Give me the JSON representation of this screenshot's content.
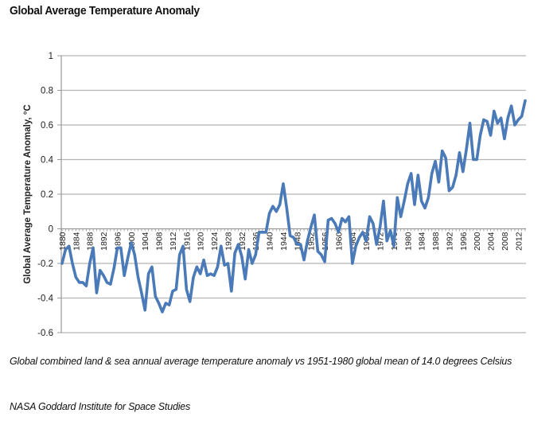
{
  "title": "Global Average Temperature Anomaly",
  "caption": "Global combined land & sea annual average temperature anomaly vs 1951-1980 global mean of 14.0 degrees Celsius",
  "source": "NASA Goddard Institute for Space Studies",
  "chart_data": {
    "type": "line",
    "title": "Global Average Temperature Anomaly",
    "xlabel": "",
    "ylabel": "Global Average Temperature Anomaly, °C",
    "ylim": [
      -0.6,
      1
    ],
    "yticks": [
      1,
      0.8,
      0.6,
      0.4,
      0.2,
      0,
      -0.2,
      -0.4,
      -0.6
    ],
    "ytick_labels": [
      "1",
      "0.8",
      "0.6",
      "0.4",
      "0.2",
      "0",
      "-0.2",
      "-0.4",
      "-0.6"
    ],
    "xlim": [
      1880,
      2014
    ],
    "xticks": [
      "1880",
      "1884",
      "1888",
      "1892",
      "1896",
      "1900",
      "1904",
      "1908",
      "1912",
      "1916",
      "1920",
      "1924",
      "1928",
      "1932",
      "1936",
      "1940",
      "1944",
      "1948",
      "1952",
      "1956",
      "1960",
      "1964",
      "1968",
      "1972",
      "1976",
      "1980",
      "1984",
      "1988",
      "1992",
      "1996",
      "2000",
      "2004",
      "2008",
      "2012"
    ],
    "grid": true,
    "legend": "none",
    "series": [
      {
        "name": "Global Average Temperature Anomaly",
        "color": "#4a7ab8",
        "x_start": 1880,
        "values": [
          -0.2,
          -0.12,
          -0.1,
          -0.2,
          -0.28,
          -0.31,
          -0.31,
          -0.33,
          -0.2,
          -0.11,
          -0.37,
          -0.24,
          -0.27,
          -0.31,
          -0.32,
          -0.23,
          -0.11,
          -0.11,
          -0.27,
          -0.17,
          -0.08,
          -0.15,
          -0.28,
          -0.37,
          -0.47,
          -0.26,
          -0.22,
          -0.39,
          -0.43,
          -0.48,
          -0.43,
          -0.44,
          -0.36,
          -0.35,
          -0.15,
          -0.1,
          -0.35,
          -0.42,
          -0.28,
          -0.22,
          -0.26,
          -0.18,
          -0.27,
          -0.26,
          -0.27,
          -0.22,
          -0.1,
          -0.21,
          -0.2,
          -0.36,
          -0.14,
          -0.09,
          -0.16,
          -0.29,
          -0.12,
          -0.2,
          -0.15,
          -0.02,
          -0.02,
          -0.02,
          0.09,
          0.13,
          0.1,
          0.14,
          0.26,
          0.12,
          -0.04,
          -0.05,
          -0.09,
          -0.09,
          -0.18,
          -0.07,
          0.01,
          0.08,
          -0.13,
          -0.15,
          -0.19,
          0.05,
          0.06,
          0.03,
          -0.02,
          0.06,
          0.04,
          0.07,
          -0.2,
          -0.1,
          -0.05,
          -0.02,
          -0.07,
          0.07,
          0.03,
          -0.09,
          0.01,
          0.16,
          -0.07,
          -0.01,
          -0.1,
          0.18,
          0.07,
          0.16,
          0.26,
          0.32,
          0.14,
          0.31,
          0.16,
          0.12,
          0.18,
          0.32,
          0.39,
          0.27,
          0.45,
          0.41,
          0.22,
          0.24,
          0.31,
          0.44,
          0.33,
          0.46,
          0.61,
          0.4,
          0.4,
          0.54,
          0.63,
          0.62,
          0.54,
          0.68,
          0.61,
          0.64,
          0.52,
          0.64,
          0.71,
          0.6,
          0.63,
          0.65,
          0.74
        ]
      }
    ]
  }
}
